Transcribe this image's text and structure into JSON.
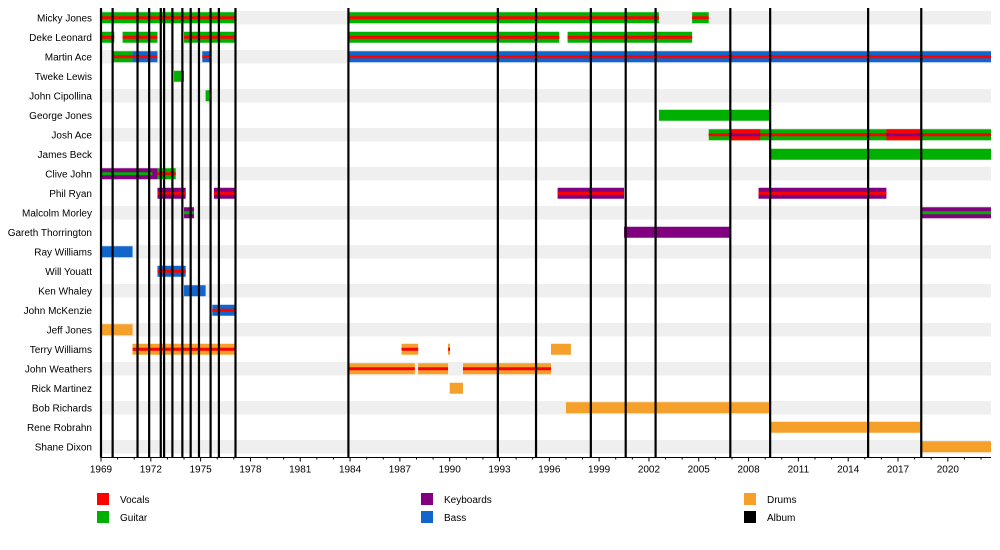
{
  "chart_data": {
    "type": "timeline",
    "title": "",
    "xlabel": "",
    "ylabel": "",
    "xlim": [
      1969,
      2022.6
    ],
    "x_ticks": [
      1969,
      1972,
      1975,
      1978,
      1981,
      1984,
      1987,
      1990,
      1993,
      1996,
      1999,
      2002,
      2005,
      2008,
      2011,
      2014,
      2017,
      2020
    ],
    "grid": "alternating-row-bands",
    "legend_placement": "bottom",
    "roles": {
      "vocals": {
        "label": "Vocals",
        "color": "#ff0000"
      },
      "guitar": {
        "label": "Guitar",
        "color": "#00b000"
      },
      "keyboards": {
        "label": "Keyboards",
        "color": "#800080"
      },
      "bass": {
        "label": "Bass",
        "color": "#1166cc"
      },
      "drums": {
        "label": "Drums",
        "color": "#f5a02a"
      },
      "album": {
        "label": "Album",
        "color": "#000000"
      }
    },
    "legend_order": [
      "vocals",
      "guitar",
      "keyboards",
      "bass",
      "drums",
      "album"
    ],
    "albums": [
      1969.0,
      1969.7,
      1971.2,
      1971.9,
      1972.6,
      1972.8,
      1973.3,
      1973.9,
      1974.4,
      1974.9,
      1975.6,
      1976.1,
      1977.1,
      1983.9,
      1992.9,
      1995.2,
      1998.5,
      2000.6,
      2002.4,
      2006.9,
      2009.3,
      2015.2,
      2018.4
    ],
    "members": [
      {
        "name": "Micky Jones",
        "periods": [
          {
            "start": 1969.0,
            "end": 1977.1,
            "main": "guitar",
            "stripe": "vocals"
          },
          {
            "start": 1983.9,
            "end": 2002.6,
            "main": "guitar",
            "stripe": "vocals"
          },
          {
            "start": 2004.6,
            "end": 2005.6,
            "main": "guitar",
            "stripe": "vocals"
          }
        ]
      },
      {
        "name": "Deke Leonard",
        "periods": [
          {
            "start": 1969.0,
            "end": 1969.8,
            "main": "guitar",
            "stripe": "vocals"
          },
          {
            "start": 1970.3,
            "end": 1972.4,
            "main": "guitar",
            "stripe": "vocals"
          },
          {
            "start": 1974.0,
            "end": 1977.1,
            "main": "guitar",
            "stripe": "vocals"
          },
          {
            "start": 1983.9,
            "end": 1996.6,
            "main": "guitar",
            "stripe": "vocals"
          },
          {
            "start": 1997.1,
            "end": 2004.6,
            "main": "guitar",
            "stripe": "vocals"
          }
        ]
      },
      {
        "name": "Martin Ace",
        "periods": [
          {
            "start": 1969.7,
            "end": 1970.9,
            "main": "guitar",
            "stripe": "vocals"
          },
          {
            "start": 1970.9,
            "end": 1972.4,
            "main": "bass",
            "stripe": "vocals"
          },
          {
            "start": 1975.1,
            "end": 1975.6,
            "main": "bass",
            "stripe": "vocals"
          },
          {
            "start": 1983.9,
            "end": 2022.6,
            "main": "bass",
            "stripe": "vocals"
          }
        ]
      },
      {
        "name": "Tweke Lewis",
        "periods": [
          {
            "start": 1973.4,
            "end": 1974.0,
            "main": "guitar"
          }
        ]
      },
      {
        "name": "John Cipollina",
        "periods": [
          {
            "start": 1975.3,
            "end": 1975.6,
            "main": "guitar"
          }
        ]
      },
      {
        "name": "George Jones",
        "periods": [
          {
            "start": 2002.6,
            "end": 2009.3,
            "main": "guitar"
          }
        ]
      },
      {
        "name": "Josh Ace",
        "periods": [
          {
            "start": 2005.6,
            "end": 2022.6,
            "main": "guitar",
            "stripe": "vocals"
          },
          {
            "start": 2006.9,
            "end": 2008.7,
            "main": "vocals",
            "stripe": "keyboards"
          },
          {
            "start": 2016.3,
            "end": 2018.4,
            "main": "vocals",
            "stripe": "keyboards"
          }
        ]
      },
      {
        "name": "James Beck",
        "periods": [
          {
            "start": 2009.3,
            "end": 2022.6,
            "main": "guitar"
          }
        ]
      },
      {
        "name": "Clive John",
        "periods": [
          {
            "start": 1969.0,
            "end": 1972.1,
            "main": "keyboards",
            "stripe": "guitar"
          },
          {
            "start": 1972.1,
            "end": 1972.4,
            "main": "keyboards"
          },
          {
            "start": 1972.4,
            "end": 1973.5,
            "main": "guitar",
            "stripe": "vocals"
          }
        ]
      },
      {
        "name": "Phil Ryan",
        "periods": [
          {
            "start": 1972.4,
            "end": 1974.1,
            "main": "keyboards",
            "stripe": "vocals"
          },
          {
            "start": 1975.8,
            "end": 1977.1,
            "main": "keyboards",
            "stripe": "vocals"
          },
          {
            "start": 1996.5,
            "end": 2000.5,
            "main": "keyboards",
            "stripe": "vocals"
          },
          {
            "start": 2008.6,
            "end": 2016.3,
            "main": "keyboards",
            "stripe": "vocals"
          }
        ]
      },
      {
        "name": "Malcolm Morley",
        "periods": [
          {
            "start": 1974.0,
            "end": 1974.6,
            "main": "keyboards",
            "stripe": "guitar"
          },
          {
            "start": 2018.4,
            "end": 2022.6,
            "main": "keyboards",
            "stripe": "guitar"
          }
        ]
      },
      {
        "name": "Gareth Thorrington",
        "periods": [
          {
            "start": 2000.5,
            "end": 2006.9,
            "main": "keyboards"
          }
        ]
      },
      {
        "name": "Ray Williams",
        "periods": [
          {
            "start": 1969.0,
            "end": 1970.9,
            "main": "bass"
          }
        ]
      },
      {
        "name": "Will Youatt",
        "periods": [
          {
            "start": 1972.4,
            "end": 1974.1,
            "main": "bass",
            "stripe": "vocals"
          }
        ]
      },
      {
        "name": "Ken Whaley",
        "periods": [
          {
            "start": 1974.0,
            "end": 1975.3,
            "main": "bass"
          }
        ]
      },
      {
        "name": "John McKenzie",
        "periods": [
          {
            "start": 1975.7,
            "end": 1977.1,
            "main": "bass",
            "stripe": "vocals"
          }
        ]
      },
      {
        "name": "Jeff Jones",
        "periods": [
          {
            "start": 1969.0,
            "end": 1970.9,
            "main": "drums"
          }
        ]
      },
      {
        "name": "Terry Williams",
        "periods": [
          {
            "start": 1970.9,
            "end": 1977.1,
            "main": "drums",
            "stripe": "vocals"
          },
          {
            "start": 1987.1,
            "end": 1988.1,
            "main": "drums",
            "stripe": "vocals"
          },
          {
            "start": 1989.9,
            "end": 1990.0,
            "main": "drums",
            "stripe": "vocals"
          },
          {
            "start": 1996.1,
            "end": 1997.3,
            "main": "drums"
          }
        ]
      },
      {
        "name": "John Weathers",
        "periods": [
          {
            "start": 1983.9,
            "end": 1987.9,
            "main": "drums",
            "stripe": "vocals"
          },
          {
            "start": 1988.1,
            "end": 1989.9,
            "main": "drums",
            "stripe": "vocals"
          },
          {
            "start": 1990.8,
            "end": 1996.1,
            "main": "drums",
            "stripe": "vocals"
          }
        ]
      },
      {
        "name": "Rick Martinez",
        "periods": [
          {
            "start": 1990.0,
            "end": 1990.8,
            "main": "drums"
          }
        ]
      },
      {
        "name": "Bob Richards",
        "periods": [
          {
            "start": 1997.0,
            "end": 2009.3,
            "main": "drums"
          }
        ]
      },
      {
        "name": "Rene Robrahn",
        "periods": [
          {
            "start": 2009.3,
            "end": 2018.4,
            "main": "drums"
          }
        ]
      },
      {
        "name": "Shane Dixon",
        "periods": [
          {
            "start": 2018.4,
            "end": 2022.6,
            "main": "drums"
          }
        ]
      }
    ]
  }
}
